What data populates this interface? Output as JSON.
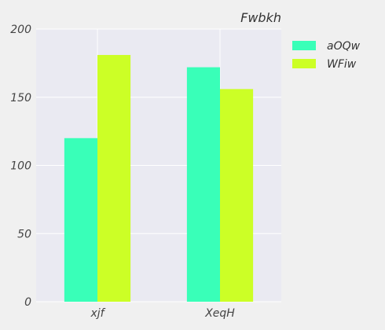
{
  "chart_data": {
    "type": "bar",
    "title": "Fwbkh",
    "xlabel": "",
    "ylabel": "",
    "categories": [
      "xjf",
      "XeqH"
    ],
    "series": [
      {
        "name": "aOQw",
        "values": [
          120,
          172
        ],
        "color": "#39ffb8"
      },
      {
        "name": "WFiw",
        "values": [
          181,
          156
        ],
        "color": "#ccff26"
      }
    ],
    "ylim": [
      0,
      200
    ],
    "yticks": [
      0,
      50,
      100,
      150,
      200
    ],
    "grid": true,
    "legend_position": "outside-top-right",
    "plot_background": "#eaeaf2",
    "grid_color": "#ffffff"
  }
}
